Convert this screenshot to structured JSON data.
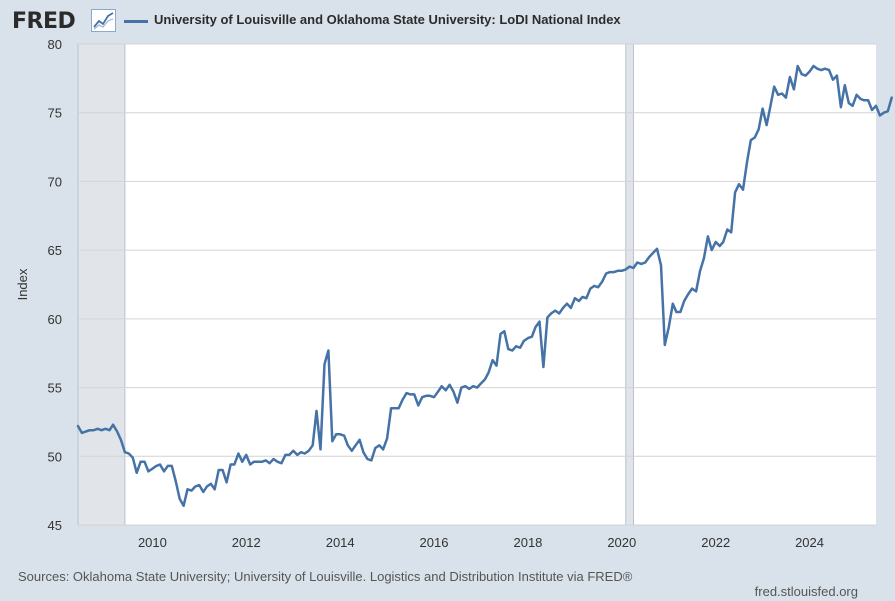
{
  "header": {
    "logo": "FRED",
    "title": "University of Louisville and Oklahoma State University: LoDI National Index"
  },
  "footer": {
    "sources": "Sources: Oklahoma State University; University of Louisville. Logistics and Distribution Institute via FRED®",
    "site": "fred.stlouisfed.org"
  },
  "colors": {
    "series": "#4572a7",
    "background": "#d9e2ea",
    "plot": "#ffffff",
    "recession": "#e1e5ea"
  },
  "icons": {
    "logo_graph": "line-chart-icon"
  },
  "chart_data": {
    "type": "line",
    "title": "University of Louisville and Oklahoma State University: LoDI National Index",
    "ylabel": "Index",
    "xlabel": "",
    "xlim": [
      "2008-06-01",
      "2025-06-01"
    ],
    "ylim": [
      45,
      80
    ],
    "yticks": [
      45,
      50,
      55,
      60,
      65,
      70,
      75,
      80
    ],
    "xticks": [
      "2010",
      "2012",
      "2014",
      "2016",
      "2018",
      "2020",
      "2022",
      "2024"
    ],
    "grid": "horizontal",
    "recessions": [
      [
        "2008-06-01",
        "2009-06-01"
      ],
      [
        "2020-02-01",
        "2020-04-01"
      ]
    ],
    "series": [
      {
        "name": "University of Louisville and Oklahoma State University: LoDI National Index",
        "color": "#4572a7",
        "start": "2008-06",
        "frequency": "monthly",
        "values": [
          52.2,
          51.7,
          51.8,
          51.9,
          51.9,
          52.0,
          51.9,
          52.0,
          51.9,
          52.3,
          51.8,
          51.2,
          50.3,
          50.2,
          49.9,
          48.8,
          49.6,
          49.6,
          48.9,
          49.1,
          49.3,
          49.4,
          48.9,
          49.3,
          49.3,
          48.2,
          46.9,
          46.4,
          47.6,
          47.5,
          47.8,
          47.9,
          47.4,
          47.8,
          48.0,
          47.6,
          49.0,
          49.0,
          48.1,
          49.4,
          49.4,
          50.2,
          49.6,
          50.1,
          49.4,
          49.6,
          49.6,
          49.6,
          49.7,
          49.5,
          49.8,
          49.6,
          49.5,
          50.1,
          50.1,
          50.4,
          50.1,
          50.3,
          50.2,
          50.4,
          50.8,
          53.3,
          50.5,
          56.7,
          57.7,
          51.1,
          51.6,
          51.6,
          51.5,
          50.8,
          50.4,
          50.8,
          51.2,
          50.3,
          49.8,
          49.7,
          50.6,
          50.8,
          50.5,
          51.3,
          53.5,
          53.5,
          53.5,
          54.1,
          54.6,
          54.5,
          54.5,
          53.7,
          54.3,
          54.4,
          54.4,
          54.3,
          54.7,
          55.1,
          54.8,
          55.2,
          54.7,
          53.9,
          55.0,
          55.1,
          54.9,
          55.1,
          55.0,
          55.3,
          55.6,
          56.1,
          57.0,
          56.6,
          58.9,
          59.1,
          57.8,
          57.7,
          58.0,
          57.9,
          58.4,
          58.6,
          58.7,
          59.4,
          59.8,
          56.5,
          60.1,
          60.4,
          60.6,
          60.4,
          60.8,
          61.1,
          60.8,
          61.5,
          61.3,
          61.6,
          61.5,
          62.2,
          62.4,
          62.3,
          62.7,
          63.3,
          63.4,
          63.4,
          63.5,
          63.5,
          63.6,
          63.8,
          63.7,
          64.1,
          64.0,
          64.1,
          64.5,
          64.8,
          65.1,
          63.9,
          58.1,
          59.4,
          61.1,
          60.5,
          60.5,
          61.3,
          61.8,
          62.2,
          62.0,
          63.5,
          64.4,
          66.0,
          65.0,
          65.6,
          65.3,
          65.6,
          66.5,
          66.3,
          69.2,
          69.8,
          69.4,
          71.4,
          73.0,
          73.2,
          73.8,
          75.3,
          74.1,
          75.4,
          76.9,
          76.3,
          76.4,
          76.1,
          77.6,
          76.7,
          78.4,
          77.8,
          77.7,
          78.0,
          78.4,
          78.2,
          78.1,
          78.2,
          78.1,
          77.4,
          77.7,
          75.4,
          77.0,
          75.7,
          75.5,
          76.3,
          76.0,
          75.9,
          75.9,
          75.2,
          75.5,
          74.8,
          75.0,
          75.1,
          76.1
        ]
      }
    ]
  }
}
